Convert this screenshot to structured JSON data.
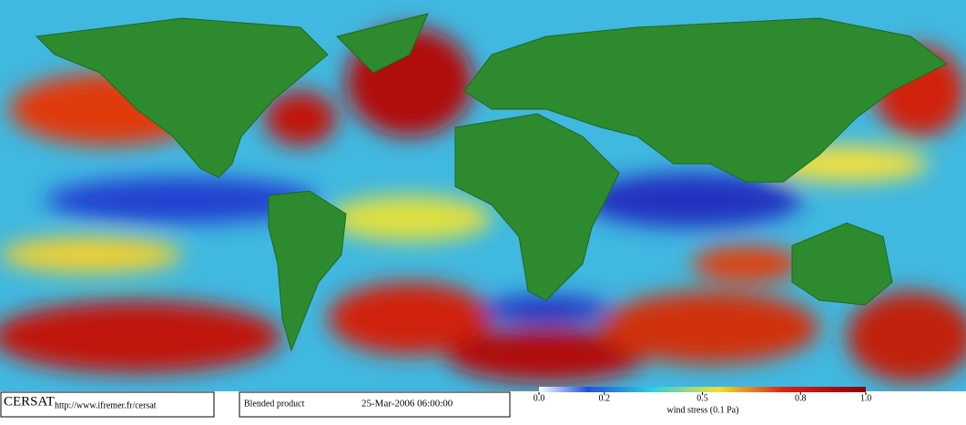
{
  "footer": {
    "logo": "CERSAT",
    "url": "http://www.ifremer.fr/cersat",
    "product": "Blended product",
    "date": "25-Mar-2006 06:00:00"
  },
  "colorbar": {
    "label": "wind stress (0.1 Pa)",
    "lim": [
      0,
      1
    ],
    "ticks": [
      {
        "value": 0,
        "label": "0.0"
      },
      0.2,
      0.5,
      0.8,
      {
        "value": 1,
        "label": "1.0"
      }
    ]
  }
}
